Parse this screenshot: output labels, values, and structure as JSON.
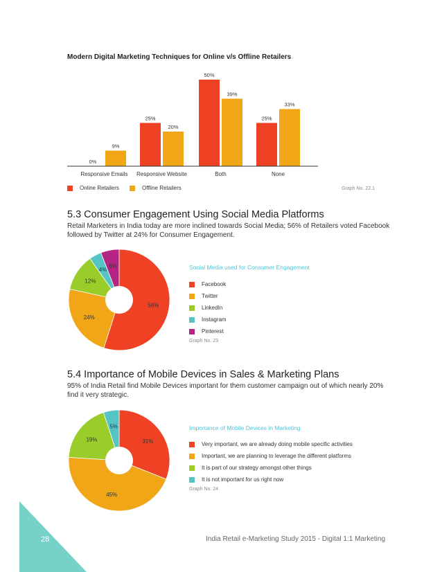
{
  "bar_chart": {
    "title": "Modern Digital Marketing Techniques for Online v/s Offline Retailers",
    "graph_no": "Graph No. 22.1"
  },
  "section_53": {
    "title": "5.3 Consumer Engagement Using Social Media Platforms",
    "body_line1": "Retail Marketers in India today are more inclined towards Social Media; 56% of Retailers voted Facebook",
    "body_line2": "followed by Twitter at 24% for Consumer Engagement.",
    "legend_title": "Social Media used for Consumer Engagement",
    "graph_no": "Graph No. 23"
  },
  "section_54": {
    "title": "5.4 Importance of Mobile Devices in Sales & Marketing Plans",
    "body_line1": "95% of India Retail find Mobile Devices important for them customer campaign out of which nearly 20%",
    "body_line2": "find it very strategic.",
    "legend_title": "Importance of Mobile Devices in Marketing",
    "graph_no": "Graph No. 24"
  },
  "footer": {
    "page_number": "28",
    "text": "India Retail e-Marketing Study 2015 - Digital 1:1 Marketing"
  },
  "colors": {
    "red": "#ef4123",
    "orange": "#f0a616",
    "green": "#9acd2a",
    "teal": "#56c4c4",
    "magenta": "#b42482",
    "corner": "#76d1c9"
  },
  "chart_data": [
    {
      "type": "bar",
      "title": "Modern Digital Marketing Techniques for Online v/s Offline Retailers",
      "categories": [
        "Responsive Emails",
        "Responsive Website",
        "Both",
        "None"
      ],
      "series": [
        {
          "name": "Online Retailers",
          "values": [
            0,
            25,
            50,
            25
          ],
          "labels": [
            "0%",
            "25%",
            "50%",
            "25%"
          ],
          "color": "#ef4123"
        },
        {
          "name": "Offline Retailers",
          "values": [
            9,
            20,
            39,
            33
          ],
          "labels": [
            "9%",
            "20%",
            "39%",
            "33%"
          ],
          "color": "#f0a616"
        }
      ],
      "ylim": [
        0,
        50
      ],
      "grid": false,
      "legend_position": "bottom-left"
    },
    {
      "type": "pie",
      "title": "Social Media used for Consumer Engagement",
      "slices": [
        {
          "name": "Facebook",
          "value": 56,
          "label": "56%",
          "color": "#ef4123"
        },
        {
          "name": "Twitter",
          "value": 24,
          "label": "24%",
          "color": "#f0a616"
        },
        {
          "name": "LinkedIn",
          "value": 12,
          "label": "12%",
          "color": "#9acd2a"
        },
        {
          "name": "Instagram",
          "value": 4,
          "label": "4%",
          "color": "#56c4c4"
        },
        {
          "name": "Pinterest",
          "value": 6,
          "label": "6%",
          "color": "#b42482"
        }
      ],
      "legend_position": "right"
    },
    {
      "type": "pie",
      "title": "Importance of Mobile Devices in Marketing",
      "slices": [
        {
          "name": "Very important, we are already doing mobile specific activities",
          "value": 31,
          "label": "31%",
          "color": "#ef4123"
        },
        {
          "name": "Important, we are planning to leverage the different platforms",
          "value": 45,
          "label": "45%",
          "color": "#f0a616"
        },
        {
          "name": "It is part of our strategy amongst other things",
          "value": 19,
          "label": "19%",
          "color": "#9acd2a"
        },
        {
          "name": "It is not important for us right now",
          "value": 5,
          "label": "5%",
          "color": "#56c4c4"
        }
      ],
      "legend_position": "right"
    }
  ]
}
